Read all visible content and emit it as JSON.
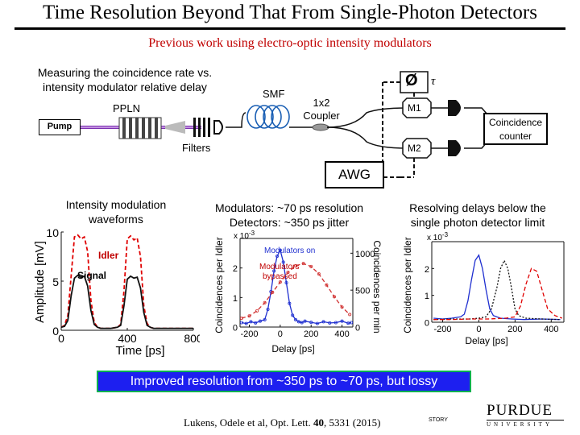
{
  "title": "Time Resolution Beyond That From Single-Photon Detectors",
  "subtitle": "Previous work using electro-optic intensity modulators",
  "setup": {
    "caption_line1": "Measuring the coincidence rate vs.",
    "caption_line2": "intensity modulator relative delay",
    "ppln": "PPLN",
    "pump": "Pump",
    "filters": "Filters",
    "smf": "SMF",
    "coupler_line1": "1x2",
    "coupler_line2": "Coupler",
    "phase_symbol": "Ø",
    "tau": "τ",
    "m1": "M1",
    "m2": "M2",
    "counter_line1": "Coincidence",
    "counter_line2": "counter",
    "awg": "AWG"
  },
  "panels": {
    "left_caption_line1": "Intensity modulation",
    "left_caption_line2": "waveforms",
    "mid_caption_line1": "Modulators: ~70 ps resolution",
    "mid_caption_line2": "Detectors: ~350 ps jitter",
    "right_caption_line1": "Resolving delays below the",
    "right_caption_line2": "single photon detector limit"
  },
  "banner": "Improved resolution from ~350 ps to ~70 ps, but lossy",
  "citation": {
    "prefix": "Lukens, Odele et al, Opt. Lett. ",
    "volume": "40",
    "suffix": ", 5331 (2015)"
  },
  "footer": {
    "story": "STORY",
    "logo_main": "PURDUE",
    "logo_sub": "UNIVERSITY"
  },
  "chart_data": [
    {
      "type": "line",
      "xlabel": "Time [ps]",
      "ylabel": "Amplitude [mV]",
      "xticks": [
        0,
        400,
        800
      ],
      "yticks": [
        0,
        5,
        10
      ],
      "xlim": [
        0,
        800
      ],
      "ylim": [
        0,
        10
      ],
      "annotations": [
        "Idler",
        "Signal"
      ],
      "series": [
        {
          "name": "Idler",
          "color": "#e00000",
          "style": "dashed",
          "x": [
            0,
            20,
            40,
            60,
            80,
            100,
            120,
            140,
            160,
            180,
            200,
            220,
            240,
            260,
            300,
            340,
            360,
            380,
            400,
            420,
            440,
            460,
            480,
            500,
            520,
            540,
            560,
            600,
            700,
            800
          ],
          "y": [
            0.3,
            0.5,
            1.5,
            5.5,
            9.5,
            9.7,
            9.3,
            9.5,
            8,
            3,
            0.8,
            0.3,
            0.2,
            0.2,
            0.2,
            0.3,
            0.6,
            4,
            9.3,
            9.6,
            9.2,
            9.4,
            7.5,
            2.5,
            0.7,
            0.3,
            0.2,
            0.2,
            0.2,
            0.2
          ]
        },
        {
          "name": "Signal",
          "color": "#111111",
          "style": "solid",
          "x": [
            0,
            20,
            40,
            60,
            80,
            100,
            120,
            140,
            160,
            180,
            200,
            220,
            240,
            260,
            300,
            340,
            360,
            380,
            400,
            420,
            440,
            460,
            480,
            500,
            520,
            540,
            560,
            600,
            700,
            800
          ],
          "y": [
            0.3,
            0.4,
            1,
            3.5,
            5.3,
            5.6,
            5.4,
            5.5,
            4.5,
            2,
            0.6,
            0.3,
            0.2,
            0.2,
            0.2,
            0.3,
            0.5,
            2.5,
            5.2,
            5.5,
            5.3,
            5.4,
            4.3,
            1.8,
            0.5,
            0.3,
            0.2,
            0.2,
            0.2,
            0.2
          ]
        }
      ]
    },
    {
      "type": "line",
      "xlabel": "Delay [ps]",
      "ylabel": "Coincidences per Idler",
      "y2label": "Coincidences per min",
      "scale_note": "x 10",
      "scale_exp": "-3",
      "xticks": [
        -200,
        0,
        200,
        400
      ],
      "yticks": [
        0,
        1,
        2
      ],
      "y2ticks": [
        0,
        500,
        1000
      ],
      "xlim": [
        -260,
        470
      ],
      "ylim": [
        0,
        3
      ],
      "y2lim": [
        0,
        1200
      ],
      "legend": [
        "Modulators on",
        "Modulators bypassed"
      ],
      "series": [
        {
          "name": "Modulators on",
          "color": "#1f2fd0",
          "style": "solid",
          "x": [
            -250,
            -220,
            -190,
            -160,
            -130,
            -100,
            -80,
            -60,
            -40,
            -20,
            0,
            20,
            40,
            60,
            80,
            100,
            120,
            140,
            160,
            200,
            240,
            280,
            320,
            360,
            400,
            440,
            460
          ],
          "y": [
            0.15,
            0.12,
            0.18,
            0.14,
            0.2,
            0.25,
            0.6,
            1.2,
            1.9,
            2.4,
            2.6,
            2.2,
            1.5,
            0.8,
            0.4,
            0.25,
            0.18,
            0.15,
            0.2,
            0.16,
            0.12,
            0.18,
            0.14,
            0.15,
            0.2,
            0.13,
            0.15
          ]
        },
        {
          "name": "Modulators bypassed",
          "color": "#d03030",
          "style": "dashed",
          "x": [
            -250,
            -200,
            -150,
            -100,
            -50,
            0,
            50,
            100,
            150,
            200,
            250,
            300,
            350,
            400,
            450
          ],
          "y": [
            120,
            150,
            220,
            330,
            470,
            610,
            740,
            830,
            860,
            820,
            720,
            570,
            410,
            270,
            170
          ]
        }
      ]
    },
    {
      "type": "line",
      "xlabel": "Delay [ps]",
      "ylabel": "Coincidences per Idler",
      "scale_note": "x 10",
      "scale_exp": "-3",
      "xticks": [
        -200,
        0,
        200,
        400
      ],
      "yticks": [
        0,
        1,
        2
      ],
      "xlim": [
        -260,
        470
      ],
      "ylim": [
        0,
        3
      ],
      "series": [
        {
          "name": "blue",
          "color": "#1f2fd0",
          "style": "solid",
          "x": [
            -250,
            -200,
            -150,
            -100,
            -80,
            -60,
            -40,
            -20,
            0,
            20,
            40,
            60,
            80,
            120,
            180,
            250,
            350,
            450
          ],
          "y": [
            0.15,
            0.12,
            0.15,
            0.2,
            0.3,
            0.8,
            1.6,
            2.3,
            2.5,
            2.0,
            1.2,
            0.5,
            0.25,
            0.15,
            0.12,
            0.1,
            0.12,
            0.1
          ]
        },
        {
          "name": "black",
          "color": "#111111",
          "style": "dotted",
          "x": [
            -250,
            -150,
            -50,
            0,
            40,
            70,
            100,
            120,
            140,
            160,
            180,
            200,
            220,
            260,
            350,
            450
          ],
          "y": [
            0.1,
            0.12,
            0.12,
            0.15,
            0.2,
            0.5,
            1.3,
            2.0,
            2.3,
            2.0,
            1.3,
            0.5,
            0.25,
            0.15,
            0.12,
            0.1
          ]
        },
        {
          "name": "red",
          "color": "#e00000",
          "style": "dashed",
          "x": [
            -250,
            -150,
            -50,
            50,
            150,
            200,
            230,
            260,
            290,
            320,
            350,
            380,
            420,
            460
          ],
          "y": [
            0.1,
            0.1,
            0.12,
            0.12,
            0.15,
            0.2,
            0.6,
            1.4,
            2.0,
            1.9,
            1.2,
            0.5,
            0.25,
            0.15
          ]
        }
      ]
    }
  ]
}
